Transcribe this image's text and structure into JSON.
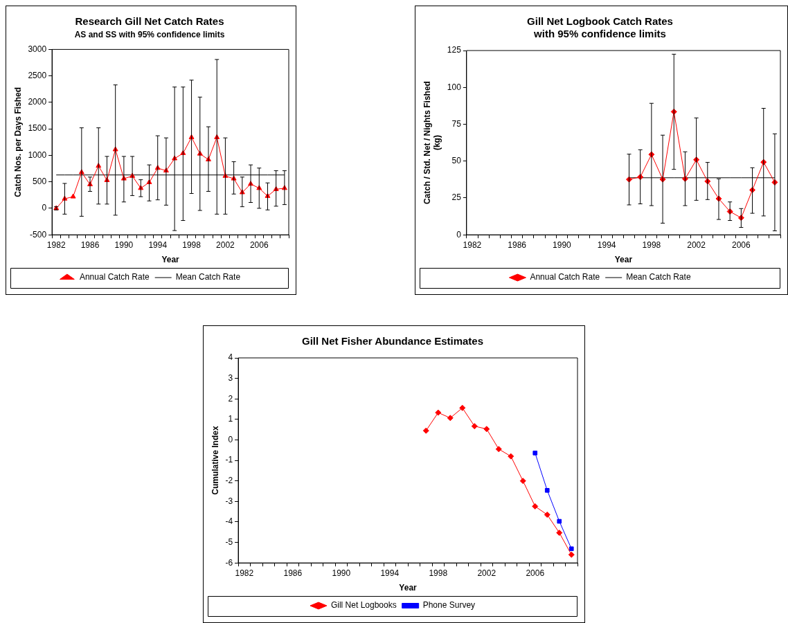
{
  "chart_data": [
    {
      "type": "line",
      "title": "Research Gill Net Catch Rates",
      "subtitle": "AS and SS with 95% confidence limits",
      "xlabel": "Year",
      "ylabel": "Catch Nos. per Days Fished",
      "categories": [
        "1982",
        null,
        null,
        null,
        "1986",
        null,
        null,
        null,
        "1990",
        null,
        null,
        null,
        "1994",
        null,
        null,
        null,
        "1998",
        null,
        null,
        null,
        "2002",
        null,
        null,
        null,
        "2006",
        null,
        null,
        null
      ],
      "ylim": [
        -500,
        3000
      ],
      "yticks": [
        -500,
        0,
        500,
        1000,
        1500,
        2000,
        2500,
        3000
      ],
      "grid": false,
      "legend": "bottom",
      "series": [
        {
          "name": "Annual Catch Rate",
          "color": "#ff0000",
          "marker": "triangle",
          "line_style": "solid",
          "values": [
            0,
            180,
            220,
            680,
            450,
            800,
            530,
            1110,
            560,
            610,
            380,
            490,
            760,
            710,
            940,
            1040,
            1340,
            1030,
            920,
            1340,
            610,
            560,
            300,
            460,
            380,
            230,
            360,
            380
          ],
          "errors": [
            [
              -30,
              30
            ],
            [
              -110,
              470
            ],
            null,
            [
              -150,
              1520
            ],
            [
              320,
              590
            ],
            [
              80,
              1520
            ],
            [
              80,
              980
            ],
            [
              -130,
              2330
            ],
            [
              120,
              980
            ],
            [
              240,
              980
            ],
            [
              220,
              540
            ],
            [
              140,
              820
            ],
            [
              160,
              1370
            ],
            [
              60,
              1330
            ],
            [
              -420,
              2290
            ],
            [
              -230,
              2290
            ],
            [
              280,
              2420
            ],
            [
              -40,
              2100
            ],
            [
              320,
              1540
            ],
            [
              -110,
              2810
            ],
            [
              -110,
              1330
            ],
            [
              270,
              880
            ],
            [
              30,
              590
            ],
            [
              110,
              820
            ],
            [
              0,
              760
            ],
            [
              -30,
              480
            ],
            [
              40,
              710
            ],
            [
              70,
              710
            ]
          ]
        },
        {
          "name": "Mean Catch Rate",
          "color": "#000000",
          "marker": "none",
          "line_style": "solid",
          "values": [
            630,
            630,
            630,
            630,
            630,
            630,
            630,
            630,
            630,
            630,
            630,
            630,
            630,
            630,
            630,
            630,
            630,
            630,
            630,
            630,
            630,
            630,
            630,
            630,
            630,
            630,
            630,
            630
          ]
        }
      ]
    },
    {
      "type": "line",
      "title": "Gill Net Logbook Catch Rates\nwith 95% confidence limits",
      "xlabel": "Year",
      "ylabel": "Catch / Std. Net / Nights Fished\n(kg)",
      "categories": [
        "1982",
        null,
        null,
        null,
        "1986",
        null,
        null,
        null,
        "1990",
        null,
        null,
        null,
        "1994",
        null,
        null,
        null,
        "1998",
        null,
        null,
        null,
        "2002",
        null,
        null,
        null,
        "2006",
        null,
        null,
        null
      ],
      "ylim": [
        0,
        125
      ],
      "yticks": [
        0,
        25,
        50,
        75,
        100,
        125
      ],
      "grid": false,
      "legend": "bottom",
      "series": [
        {
          "name": "Annual Catch Rate",
          "color": "#ff0000",
          "marker": "diamond",
          "line_style": "solid",
          "values": [
            null,
            null,
            null,
            null,
            null,
            null,
            null,
            null,
            null,
            null,
            null,
            null,
            null,
            null,
            37.6,
            39.2,
            54.5,
            37.6,
            83.5,
            38,
            50.9,
            36.3,
            24.5,
            15.8,
            11.5,
            30.4,
            49.3,
            35.6
          ],
          "errors": [
            null,
            null,
            null,
            null,
            null,
            null,
            null,
            null,
            null,
            null,
            null,
            null,
            null,
            null,
            [
              20.3,
              54.7
            ],
            [
              21,
              57.7
            ],
            [
              19.8,
              89.2
            ],
            [
              7.9,
              67.6
            ],
            [
              44.4,
              122.5
            ],
            [
              19.8,
              56.3
            ],
            [
              23.4,
              79.3
            ],
            [
              23.9,
              49.1
            ],
            [
              10.4,
              38
            ],
            [
              9.7,
              22.3
            ],
            [
              5,
              17.8
            ],
            [
              14.6,
              45.5
            ],
            [
              12.8,
              85.8
            ],
            [
              2.7,
              68.5
            ]
          ]
        },
        {
          "name": "Mean Catch Rate",
          "color": "#000000",
          "marker": "none",
          "line_style": "solid",
          "values": [
            null,
            null,
            null,
            null,
            null,
            null,
            null,
            null,
            null,
            null,
            null,
            null,
            null,
            null,
            38.7,
            38.7,
            38.7,
            38.7,
            38.7,
            38.7,
            38.7,
            38.7,
            38.7,
            38.7,
            38.7,
            38.7,
            38.7,
            38.7
          ]
        }
      ]
    },
    {
      "type": "line",
      "title": "Gill Net Fisher Abundance Estimates",
      "xlabel": "Year",
      "ylabel": "Cumulative Index",
      "categories": [
        "1982",
        null,
        null,
        null,
        "1986",
        null,
        null,
        null,
        "1990",
        null,
        null,
        null,
        "1994",
        null,
        null,
        null,
        "1998",
        null,
        null,
        null,
        "2002",
        null,
        null,
        null,
        "2006",
        null,
        null,
        null
      ],
      "ylim": [
        -6,
        4
      ],
      "yticks": [
        -6,
        -5,
        -4,
        -3,
        -2,
        -1,
        0,
        1,
        2,
        3,
        4
      ],
      "grid": false,
      "legend": "bottom",
      "series": [
        {
          "name": "Gill Net Logbooks",
          "color": "#ff0000",
          "marker": "diamond",
          "line_style": "solid",
          "values": [
            null,
            null,
            null,
            null,
            null,
            null,
            null,
            null,
            null,
            null,
            null,
            null,
            null,
            null,
            null,
            0.45,
            1.33,
            1.07,
            1.56,
            0.67,
            0.53,
            -0.45,
            -0.8,
            -2.0,
            -3.24,
            -3.65,
            -4.53,
            -5.6
          ]
        },
        {
          "name": "Phone Survey",
          "color": "#0000ff",
          "marker": "square",
          "line_style": "solid",
          "values": [
            null,
            null,
            null,
            null,
            null,
            null,
            null,
            null,
            null,
            null,
            null,
            null,
            null,
            null,
            null,
            null,
            null,
            null,
            null,
            null,
            null,
            null,
            null,
            null,
            -0.64,
            -2.46,
            -3.97,
            -5.31
          ]
        }
      ]
    }
  ]
}
